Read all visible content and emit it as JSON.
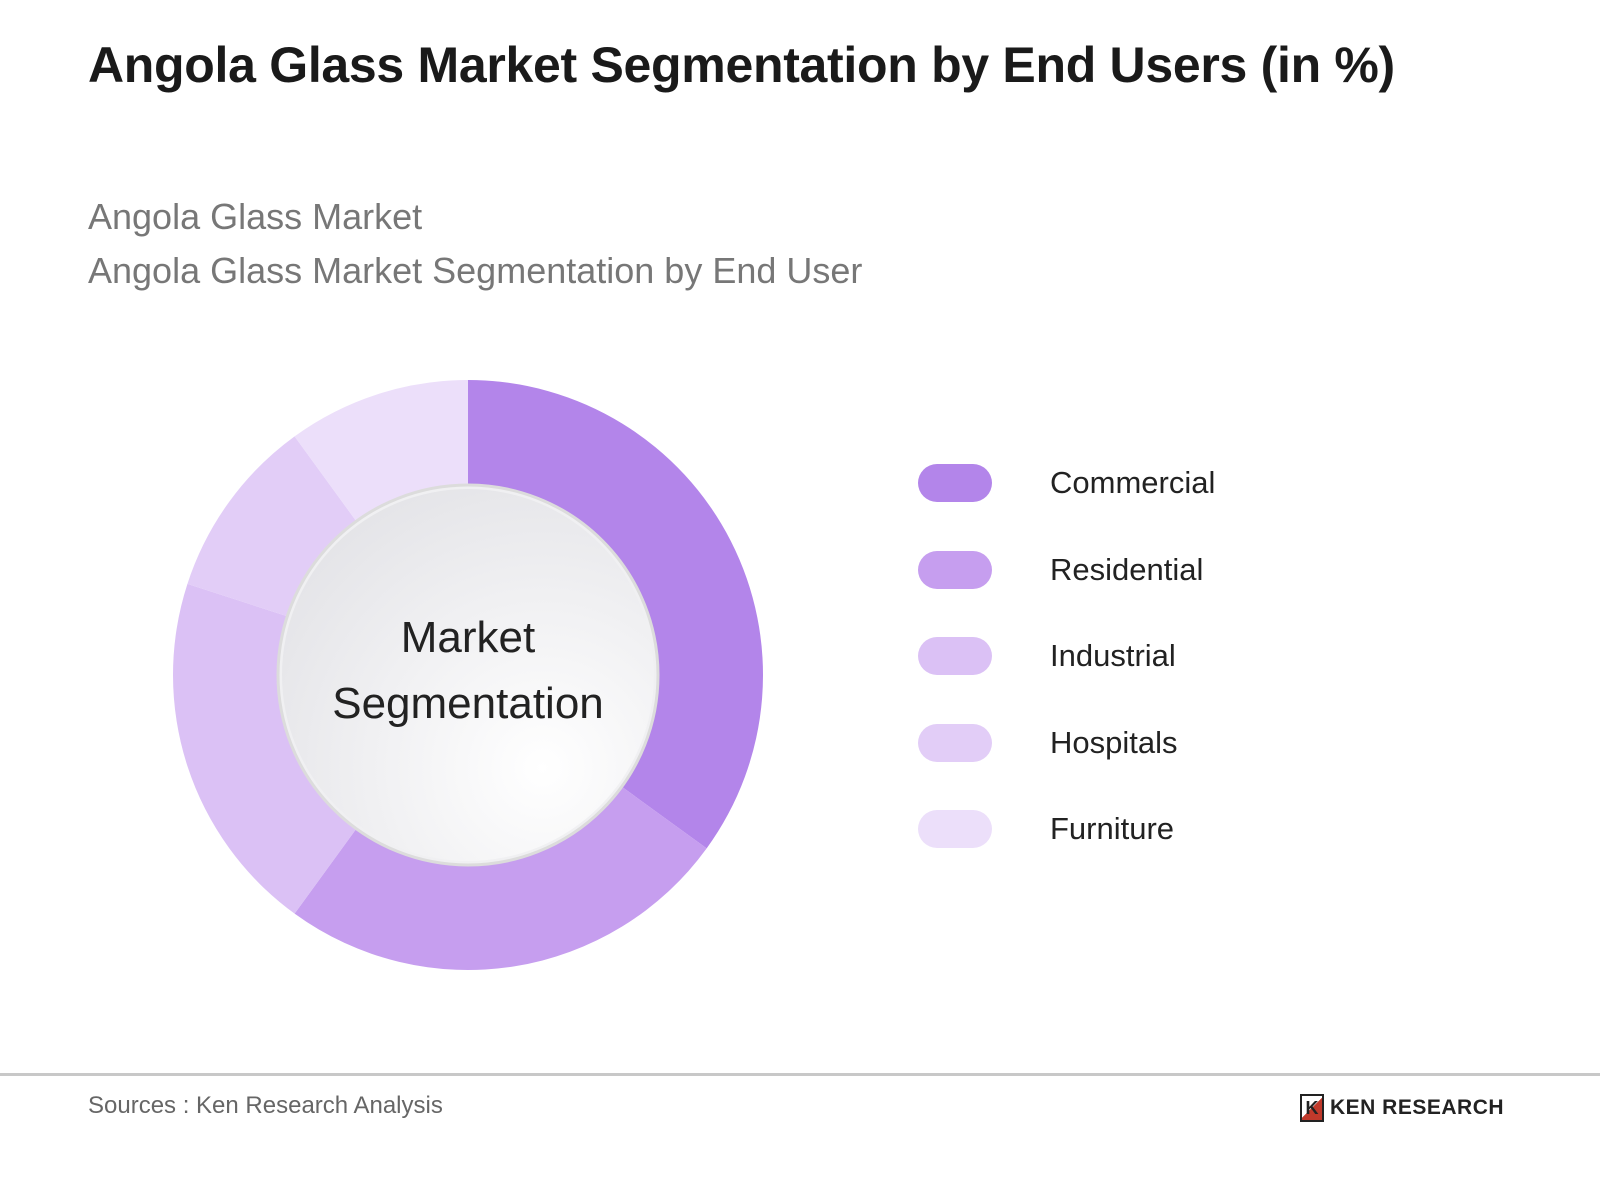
{
  "title": "Angola Glass Market Segmentation by End Users (in %)",
  "subtitle_1": "Angola Glass Market",
  "subtitle_2": "Angola Glass Market Segmentation by End User",
  "center_label": [
    "Market",
    "Segmentation"
  ],
  "source": "Sources : Ken Research Analysis",
  "logo_text": "KEN RESEARCH",
  "chart_data": {
    "type": "pie",
    "variant": "donut",
    "title": "Angola Glass Market Segmentation by End Users (in %)",
    "categories": [
      "Commercial",
      "Residential",
      "Industrial",
      "Hospitals",
      "Furniture"
    ],
    "values": [
      35,
      25,
      20,
      10,
      10
    ],
    "colors": [
      "#b385ea",
      "#c69eef",
      "#dbc1f5",
      "#e2cdf7",
      "#ecdffa"
    ],
    "legend": "right"
  }
}
